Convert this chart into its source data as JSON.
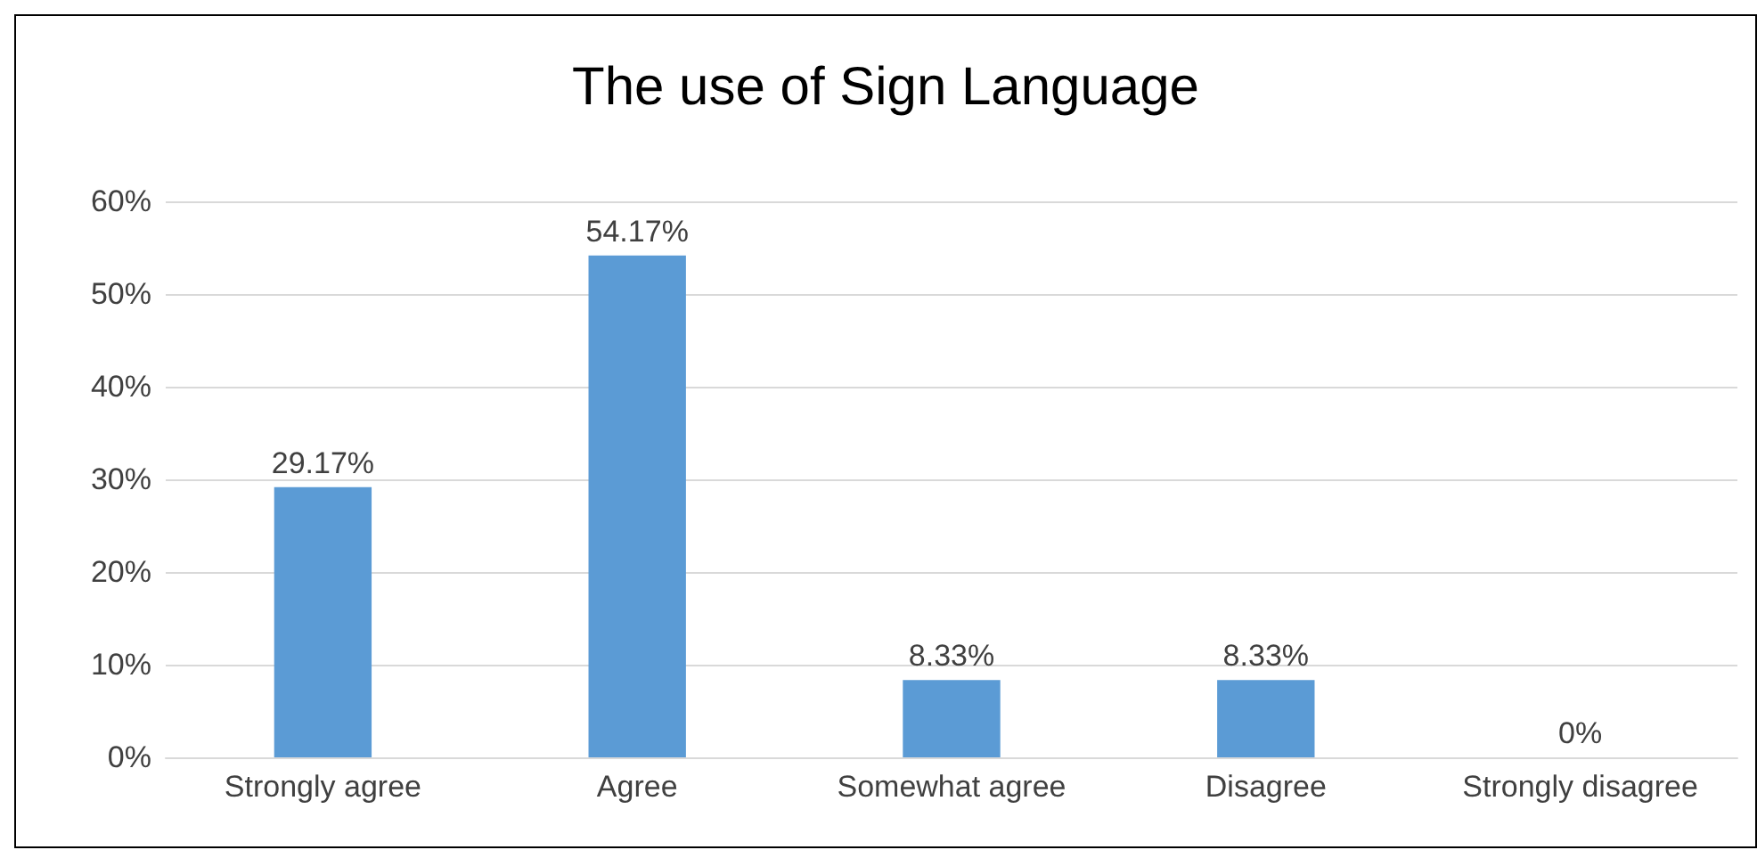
{
  "chart_data": {
    "type": "bar",
    "title": "The use of Sign Language",
    "categories": [
      "Strongly agree",
      "Agree",
      "Somewhat agree",
      "Disagree",
      "Strongly disagree"
    ],
    "values": [
      29.17,
      54.17,
      8.33,
      8.33,
      0
    ],
    "value_labels": [
      "29.17%",
      "54.17%",
      "8.33%",
      "8.33%",
      "0%"
    ],
    "color": "#5b9bd5",
    "ylim": [
      0,
      60
    ],
    "yticks": [
      {
        "value": 0,
        "label": "0%"
      },
      {
        "value": 10,
        "label": "10%"
      },
      {
        "value": 20,
        "label": "20%"
      },
      {
        "value": 30,
        "label": "30%"
      },
      {
        "value": 40,
        "label": "40%"
      },
      {
        "value": 50,
        "label": "50%"
      },
      {
        "value": 60,
        "label": "60%"
      }
    ],
    "grid": "y"
  }
}
